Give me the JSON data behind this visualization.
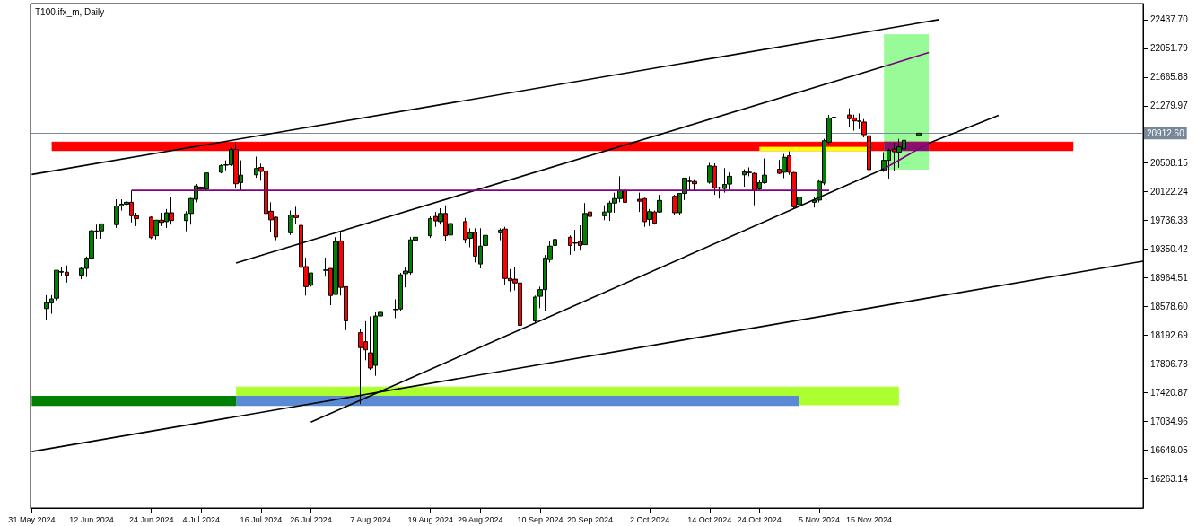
{
  "chart_data": {
    "type": "candlestick",
    "title": "T100.ifx_m, Daily",
    "marker": "none",
    "grid": false,
    "x": [
      "2024-06-03",
      "2024-06-04",
      "2024-06-05",
      "2024-06-06",
      "2024-06-07",
      "2024-06-10",
      "2024-06-11",
      "2024-06-12",
      "2024-06-13",
      "2024-06-14",
      "2024-06-17",
      "2024-06-18",
      "2024-06-19",
      "2024-06-20",
      "2024-06-21",
      "2024-06-24",
      "2024-06-25",
      "2024-06-26",
      "2024-06-27",
      "2024-06-28",
      "2024-07-01",
      "2024-07-02",
      "2024-07-03",
      "2024-07-04",
      "2024-07-05",
      "2024-07-08",
      "2024-07-09",
      "2024-07-10",
      "2024-07-11",
      "2024-07-12",
      "2024-07-15",
      "2024-07-16",
      "2024-07-17",
      "2024-07-18",
      "2024-07-19",
      "2024-07-22",
      "2024-07-23",
      "2024-07-24",
      "2024-07-25",
      "2024-07-26",
      "2024-07-29",
      "2024-07-30",
      "2024-07-31",
      "2024-08-01",
      "2024-08-02",
      "2024-08-05",
      "2024-08-06",
      "2024-08-07",
      "2024-08-08",
      "2024-08-09",
      "2024-08-12",
      "2024-08-13",
      "2024-08-14",
      "2024-08-15",
      "2024-08-16",
      "2024-08-19",
      "2024-08-20",
      "2024-08-21",
      "2024-08-22",
      "2024-08-23",
      "2024-08-26",
      "2024-08-27",
      "2024-08-28",
      "2024-08-29",
      "2024-08-30",
      "2024-09-02",
      "2024-09-03",
      "2024-09-04",
      "2024-09-05",
      "2024-09-06",
      "2024-09-09",
      "2024-09-10",
      "2024-09-11",
      "2024-09-12",
      "2024-09-13",
      "2024-09-16",
      "2024-09-17",
      "2024-09-18",
      "2024-09-19",
      "2024-09-20",
      "2024-09-23",
      "2024-09-24",
      "2024-09-25",
      "2024-09-26",
      "2024-09-27",
      "2024-09-30",
      "2024-10-01",
      "2024-10-02",
      "2024-10-03",
      "2024-10-04",
      "2024-10-07",
      "2024-10-08",
      "2024-10-09",
      "2024-10-10",
      "2024-10-11",
      "2024-10-14",
      "2024-10-15",
      "2024-10-16",
      "2024-10-17",
      "2024-10-18",
      "2024-10-21",
      "2024-10-22",
      "2024-10-23",
      "2024-10-24",
      "2024-10-25",
      "2024-10-28",
      "2024-10-29",
      "2024-10-30",
      "2024-10-31",
      "2024-11-01",
      "2024-11-04",
      "2024-11-05",
      "2024-11-06",
      "2024-11-07",
      "2024-11-08",
      "2024-11-11",
      "2024-11-12",
      "2024-11-13",
      "2024-11-14",
      "2024-11-15",
      "2024-11-18",
      "2024-11-19",
      "2024-11-20",
      "2024-11-21",
      "2024-11-22",
      "2024-11-25"
    ],
    "ohlc": [
      [
        18550,
        18730,
        18400,
        18630
      ],
      [
        18625,
        18730,
        18480,
        18680
      ],
      [
        18690,
        19065,
        18660,
        19065
      ],
      [
        19040,
        19105,
        18985,
        19050
      ],
      [
        19040,
        19130,
        18900,
        19000
      ],
      [
        19000,
        19115,
        18945,
        19090
      ],
      [
        19090,
        19250,
        18975,
        19230
      ],
      [
        19230,
        19605,
        19215,
        19595
      ],
      [
        19590,
        19680,
        19490,
        19595
      ],
      [
        19595,
        19690,
        19490,
        19690
      ],
      [
        19680,
        20020,
        19635,
        19930
      ],
      [
        19930,
        20020,
        19870,
        19955
      ],
      [
        19955,
        19990,
        19945,
        19980
      ],
      [
        19980,
        20140,
        19710,
        19800
      ],
      [
        19800,
        19840,
        19660,
        19760
      ],
      [
        19780,
        19790,
        19485,
        19505
      ],
      [
        19530,
        19740,
        19480,
        19740
      ],
      [
        19740,
        19840,
        19660,
        19710
      ],
      [
        19720,
        19890,
        19635,
        19840
      ],
      [
        19840,
        20045,
        19680,
        19735
      ],
      [
        19735,
        19860,
        19590,
        19825
      ],
      [
        19830,
        20040,
        19680,
        20030
      ],
      [
        20020,
        20225,
        19980,
        20200
      ],
      [
        20185,
        20190,
        20150,
        20155
      ],
      [
        20155,
        20375,
        20140,
        20375
      ],
      [
        20385,
        20490,
        20370,
        20475
      ],
      [
        20480,
        20545,
        20410,
        20485
      ],
      [
        20485,
        20715,
        20470,
        20690
      ],
      [
        20690,
        20790,
        20165,
        20230
      ],
      [
        20245,
        20545,
        20130,
        20345
      ],
      [
        20350,
        20595,
        20310,
        20435
      ],
      [
        20450,
        20500,
        20270,
        20395
      ],
      [
        20400,
        20410,
        19780,
        19830
      ],
      [
        19860,
        19980,
        19575,
        19745
      ],
      [
        19780,
        19790,
        19470,
        19515
      ],
      [
        19570,
        19870,
        19540,
        19810
      ],
      [
        19810,
        19920,
        19695,
        19775
      ],
      [
        19670,
        19690,
        19010,
        19105
      ],
      [
        19115,
        19235,
        18725,
        18845
      ],
      [
        18865,
        19030,
        18845,
        19030
      ],
      [
        19065,
        19235,
        18980,
        19070
      ],
      [
        19090,
        19090,
        18595,
        18725
      ],
      [
        18740,
        19510,
        18740,
        19450
      ],
      [
        19460,
        19580,
        18725,
        18835
      ],
      [
        18845,
        18845,
        18260,
        18385
      ],
      [
        18225,
        18275,
        17265,
        18025
      ],
      [
        18105,
        18380,
        17855,
        17995
      ],
      [
        17955,
        18445,
        17725,
        17750
      ],
      [
        17785,
        18500,
        17645,
        18450
      ],
      [
        18450,
        18580,
        18275,
        18500
      ],
      [
        18535,
        18675,
        18420,
        18540
      ],
      [
        18545,
        19030,
        18520,
        19005
      ],
      [
        19020,
        19115,
        18835,
        19055
      ],
      [
        19035,
        19515,
        19005,
        19475
      ],
      [
        19470,
        19590,
        19350,
        19510
      ],
      [
        19530,
        19790,
        19500,
        19760
      ],
      [
        19790,
        19850,
        19650,
        19730
      ],
      [
        19720,
        19900,
        19680,
        19830
      ],
      [
        19830,
        19940,
        19455,
        19530
      ],
      [
        19540,
        19820,
        19515,
        19695
      ],
      [
        19720,
        19770,
        19430,
        19480
      ],
      [
        19495,
        19630,
        19375,
        19570
      ],
      [
        19580,
        19630,
        19170,
        19255
      ],
      [
        19150,
        19630,
        19090,
        19390
      ],
      [
        19400,
        19575,
        19290,
        19535
      ],
      [
        19570,
        19630,
        19470,
        19605
      ],
      [
        19620,
        19650,
        18875,
        18955
      ],
      [
        18955,
        19080,
        18780,
        18925
      ],
      [
        18945,
        19115,
        18795,
        18895
      ],
      [
        18895,
        18925,
        18305,
        18325
      ],
      [
        18385,
        18725,
        18365,
        18705
      ],
      [
        18715,
        18845,
        18555,
        18805
      ],
      [
        18805,
        19270,
        18520,
        19230
      ],
      [
        19210,
        19460,
        19170,
        19390
      ],
      [
        19400,
        19570,
        19370,
        19480
      ],
      [
        19510,
        19535,
        19275,
        19400
      ],
      [
        19435,
        19610,
        19320,
        19430
      ],
      [
        19450,
        19670,
        19330,
        19400
      ],
      [
        19410,
        19970,
        19410,
        19830
      ],
      [
        19850,
        19860,
        19630,
        19790
      ],
      [
        19800,
        19940,
        19740,
        19850
      ],
      [
        19850,
        20000,
        19730,
        19970
      ],
      [
        19970,
        20110,
        19840,
        20030
      ],
      [
        20030,
        20330,
        19980,
        20140
      ],
      [
        20140,
        20185,
        19950,
        19980
      ],
      [
        20020,
        20110,
        19850,
        19995
      ],
      [
        20030,
        20040,
        19650,
        19720
      ],
      [
        19750,
        19890,
        19660,
        19855
      ],
      [
        19850,
        19870,
        19680,
        19700
      ],
      [
        19850,
        20080,
        19840,
        20005
      ],
      [
        20060,
        20080,
        19810,
        19840
      ],
      [
        19840,
        20100,
        19810,
        20100
      ],
      [
        20100,
        20310,
        20010,
        20305
      ],
      [
        20265,
        20330,
        20140,
        20260
      ],
      [
        20260,
        20290,
        20140,
        20230
      ],
      [
        20250,
        20510,
        20230,
        20470
      ],
      [
        20465,
        20505,
        20080,
        20170
      ],
      [
        20175,
        20190,
        20030,
        20170
      ],
      [
        20165,
        20440,
        20110,
        20220
      ],
      [
        20225,
        20380,
        20150,
        20330
      ],
      [
        20350,
        20425,
        20190,
        20390
      ],
      [
        20385,
        20450,
        20330,
        20380
      ],
      [
        20370,
        20380,
        19940,
        20140
      ],
      [
        20160,
        20280,
        20130,
        20245
      ],
      [
        20245,
        20570,
        20230,
        20345
      ],
      [
        20425,
        20550,
        20360,
        20370
      ],
      [
        20385,
        20630,
        20305,
        20585
      ],
      [
        20605,
        20665,
        20350,
        20385
      ],
      [
        20380,
        20390,
        19900,
        19920
      ],
      [
        19950,
        20080,
        19910,
        20050
      ],
      [
        19980,
        20050,
        19910,
        20010
      ],
      [
        20010,
        20290,
        19980,
        20260
      ],
      [
        20240,
        20835,
        20210,
        20810
      ],
      [
        20790,
        21155,
        20760,
        21115
      ],
      [
        21120,
        21145,
        21005,
        21125
      ],
      [
        21155,
        21245,
        20995,
        21105
      ],
      [
        21115,
        21160,
        20945,
        21075
      ],
      [
        21075,
        21175,
        20965,
        21070
      ],
      [
        21060,
        21100,
        20855,
        20890
      ],
      [
        20875,
        20875,
        20310,
        20420
      ],
      [
        20410,
        20655,
        20390,
        20545
      ],
      [
        20545,
        20705,
        20300,
        20680
      ],
      [
        20695,
        20780,
        20405,
        20660
      ],
      [
        20655,
        20835,
        20445,
        20725
      ],
      [
        20700,
        20815,
        20615,
        20815
      ],
      [
        20880,
        20915,
        20865,
        20910
      ]
    ],
    "colors": [
      "#008000",
      "#008000",
      "#008000",
      "#008000",
      "#ff0000",
      "#008000",
      "#008000",
      "#008000",
      "#008000",
      "#008000",
      "#008000",
      "#008000",
      "#008000",
      "#ff0000",
      "#ff0000",
      "#ff0000",
      "#008000",
      "#ff0000",
      "#008000",
      "#ff0000",
      "#008000",
      "#008000",
      "#008000",
      "#ff0000",
      "#008000",
      "#008000",
      "#008000",
      "#008000",
      "#ff0000",
      "#008000",
      "#008000",
      "#ff0000",
      "#ff0000",
      "#ff0000",
      "#ff0000",
      "#008000",
      "#ff0000",
      "#ff0000",
      "#ff0000",
      "#008000",
      "#008000",
      "#ff0000",
      "#008000",
      "#ff0000",
      "#ff0000",
      "#ff0000",
      "#ff0000",
      "#ff0000",
      "#008000",
      "#008000",
      "#008000",
      "#008000",
      "#008000",
      "#008000",
      "#008000",
      "#008000",
      "#ff0000",
      "#008000",
      "#ff0000",
      "#008000",
      "#ff0000",
      "#008000",
      "#ff0000",
      "#008000",
      "#008000",
      "#008000",
      "#ff0000",
      "#ff0000",
      "#ff0000",
      "#ff0000",
      "#008000",
      "#008000",
      "#008000",
      "#008000",
      "#008000",
      "#ff0000",
      "#ff0000",
      "#ff0000",
      "#008000",
      "#ff0000",
      "#008000",
      "#008000",
      "#008000",
      "#008000",
      "#ff0000",
      "#ff0000",
      "#ff0000",
      "#008000",
      "#ff0000",
      "#008000",
      "#ff0000",
      "#008000",
      "#008000",
      "#ff0000",
      "#ff0000",
      "#008000",
      "#ff0000",
      "#ff0000",
      "#008000",
      "#008000",
      "#008000",
      "#ff0000",
      "#ff0000",
      "#008000",
      "#008000",
      "#ff0000",
      "#008000",
      "#ff0000",
      "#ff0000",
      "#008000",
      "#008000",
      "#008000",
      "#008000",
      "#008000",
      "#008000",
      "#ff0000",
      "#ff0000",
      "#ff0000",
      "#ff0000",
      "#ff0000",
      "#008000",
      "#008000",
      "#ff0000",
      "#008000",
      "#008000",
      "#008000"
    ],
    "series": [
      {
        "type": "line",
        "color": "#ff0000",
        "x": [
          "2024-06-04",
          "2024-12-26"
        ],
        "values": [
          20790,
          20790
        ],
        "lower": [
          20670,
          20670
        ],
        "upper": [
          20790,
          20790
        ]
      },
      {
        "type": "line",
        "color": "#ffff00",
        "x": [
          "2024-10-24",
          "2024-11-15"
        ],
        "values": [
          20720,
          20720
        ],
        "lower": [
          20670,
          20670
        ],
        "upper": [
          20720,
          20720
        ]
      },
      {
        "type": "line",
        "color": "#98fb98",
        "x": [
          "2024-11-18",
          "2024-11-27"
        ],
        "values": [
          22235,
          22235
        ],
        "lower": [
          20420,
          20420
        ],
        "upper": [
          22235,
          22235
        ]
      },
      {
        "type": "line",
        "color": "#8b0f6f",
        "x": [
          "2024-11-18",
          "2024-11-27"
        ],
        "values": [
          20790,
          20790
        ],
        "lower": [
          20670,
          20670
        ],
        "upper": [
          20790,
          20790
        ]
      },
      {
        "type": "line",
        "color": "#008000",
        "x": [
          "2024-05-31",
          "2024-07-11"
        ],
        "values": [
          17370,
          17370
        ],
        "lower": [
          17240,
          17240
        ],
        "upper": [
          17370,
          17370
        ]
      },
      {
        "type": "line",
        "color": "#adff2f",
        "x": [
          "2024-07-11",
          "2024-11-21"
        ],
        "values": [
          17495,
          17495
        ],
        "lower": [
          17250,
          17250
        ],
        "upper": [
          17495,
          17495
        ]
      },
      {
        "type": "line",
        "color": "#5a8ad4",
        "x": [
          "2024-07-11",
          "2024-11-01"
        ],
        "values": [
          17370,
          17370
        ],
        "lower": [
          17240,
          17240
        ],
        "upper": [
          17370,
          17370
        ]
      },
      {
        "type": "line",
        "color": "#000000",
        "x": [
          "2024-05-31",
          "2024-11-29"
        ],
        "values": [
          20355,
          22438
        ]
      },
      {
        "type": "line",
        "color": "#000000",
        "x": [
          "2024-05-31",
          "2025-01-09"
        ],
        "values": [
          16625,
          19188
        ]
      },
      {
        "type": "line",
        "color": "#000000",
        "x": [
          "2024-07-11",
          "2024-11-18"
        ],
        "values": [
          19164,
          21808
        ]
      },
      {
        "type": "line",
        "color": "#800080",
        "x": [
          "2024-11-18",
          "2024-11-27"
        ],
        "values": [
          21808,
          21996
        ]
      },
      {
        "type": "line",
        "color": "#000000",
        "x": [
          "2024-07-26",
          "2024-11-18",
          "2024-11-22",
          "2024-11-27",
          "2024-12-11"
        ],
        "values": [
          17022,
          20431,
          null,
          20777,
          21150
        ]
      },
      {
        "type": "line",
        "color": "#800080",
        "x": [
          "2024-11-18",
          "2024-11-27"
        ],
        "values": [
          20431,
          20777
        ]
      },
      {
        "type": "line",
        "color": "#800080",
        "x": [
          "2024-06-20",
          "2024-11-07"
        ],
        "values": [
          20140,
          20140
        ]
      }
    ],
    "ref_lines": [
      {
        "axis": "y",
        "value": 20912.6,
        "label": "20912.60",
        "color": "#778899"
      }
    ],
    "xlim": [
      "2024-05-30T18:00",
      "2025-01-09"
    ],
    "xticks": [
      {
        "value": "2024-05-31",
        "label": "31 May 2024"
      },
      {
        "value": "2024-06-12",
        "label": "12 Jun 2024"
      },
      {
        "value": "2024-06-24",
        "label": "24 Jun 2024"
      },
      {
        "value": "2024-07-04",
        "label": "4 Jul 2024"
      },
      {
        "value": "2024-07-16",
        "label": "16 Jul 2024"
      },
      {
        "value": "2024-07-26",
        "label": "26 Jul 2024"
      },
      {
        "value": "2024-08-07",
        "label": "7 Aug 2024"
      },
      {
        "value": "2024-08-19",
        "label": "19 Aug 2024"
      },
      {
        "value": "2024-08-29",
        "label": "29 Aug 2024"
      },
      {
        "value": "2024-09-10",
        "label": "10 Sep 2024"
      },
      {
        "value": "2024-09-20",
        "label": "20 Sep 2024"
      },
      {
        "value": "2024-10-02",
        "label": "2 Oct 2024"
      },
      {
        "value": "2024-10-14",
        "label": "14 Oct 2024"
      },
      {
        "value": "2024-10-24",
        "label": "24 Oct 2024"
      },
      {
        "value": "2024-11-05",
        "label": "5 Nov 2024"
      },
      {
        "value": "2024-11-15",
        "label": "15 Nov 2024"
      }
    ],
    "ylim": [
      15866,
      22654
    ],
    "yticks": [
      16263.14,
      16649.05,
      17034.96,
      17420.87,
      17806.78,
      18192.69,
      {
        "value": 18578.6,
        "label": "18578.60"
      },
      18964.51,
      19350.42,
      19736.33,
      20122.24,
      20508.15,
      {
        "value": 20894.06,
        "label": null
      },
      21279.97,
      21665.88,
      22051.79,
      {
        "value": 22437.7,
        "label": "22437.70"
      }
    ]
  }
}
